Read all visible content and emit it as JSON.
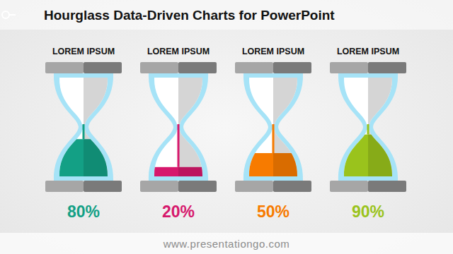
{
  "chart_data": {
    "type": "hourglass",
    "title": "Hourglass Data-Driven Charts for PowerPoint",
    "categories": [
      "LOREM IPSUM",
      "LOREM IPSUM",
      "LOREM IPSUM",
      "LOREM IPSUM"
    ],
    "values": [
      80,
      20,
      50,
      90
    ],
    "value_labels": [
      "80%",
      "20%",
      "50%",
      "90%"
    ],
    "colors": [
      "#13a085",
      "#d6186c",
      "#f77b00",
      "#9ac31c"
    ],
    "ylim": [
      0,
      100
    ],
    "tick_labels": false,
    "data_labels": true,
    "annotations": [
      "www.presentationgo.com"
    ]
  }
}
